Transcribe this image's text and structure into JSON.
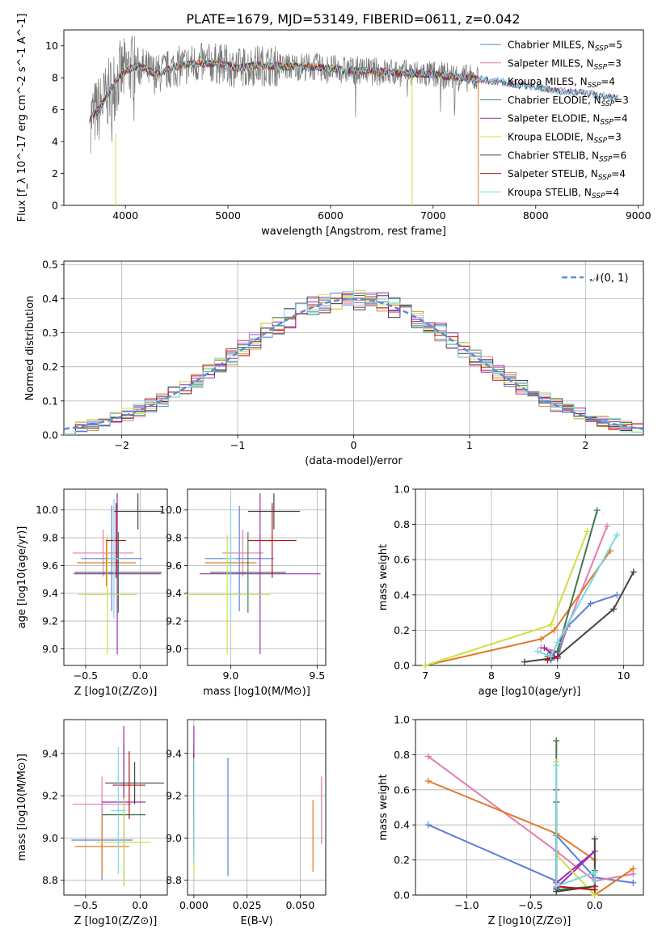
{
  "title": "PLATE=1679, MJD=53149, FIBERID=0611, z=0.042",
  "colors": {
    "chabrier_miles": "#5b7fd6",
    "salpeter_miles": "#e47cb1",
    "kroupa_miles": "#8a8a8a",
    "chabrier_elodie": "#3f7a4f",
    "salpeter_elodie": "#9b2db5",
    "kroupa_elodie": "#cde045",
    "chabrier_stelib": "#444444",
    "salpeter_stelib": "#b01818",
    "kroupa_stelib": "#7ad8e4",
    "orange": "#e07a2a",
    "normal": "#5b8bd6",
    "data": "#777777"
  },
  "chart_data": [
    {
      "id": "spectrum",
      "type": "line",
      "xlabel": "wavelength [Angstrom, rest frame]",
      "ylabel": "Flux [f_λ 10^-17 erg cm^-2 s^-1 A^-1]",
      "xlim": [
        3400,
        9050
      ],
      "ylim": [
        0,
        11
      ],
      "xticks": [
        4000,
        5000,
        6000,
        7000,
        8000,
        9000
      ],
      "yticks": [
        0,
        2,
        4,
        6,
        8,
        10
      ],
      "grid": false,
      "legend_position": "top-right",
      "legend": [
        {
          "label": "Chabrier MILES, N_SSP=5",
          "color": "#5b7fd6"
        },
        {
          "label": "Salpeter MILES, N_SSP=3",
          "color": "#e47cb1"
        },
        {
          "label": "Kroupa MILES, N_SSP=4",
          "color": "#8a8a8a"
        },
        {
          "label": "Chabrier ELODIE, N_SSP=3",
          "color": "#3f7a4f"
        },
        {
          "label": "Salpeter ELODIE, N_SSP=4",
          "color": "#9b2db5"
        },
        {
          "label": "Kroupa ELODIE, N_SSP=3",
          "color": "#cde045"
        },
        {
          "label": "Chabrier STELIB, N_SSP=6",
          "color": "#444444"
        },
        {
          "label": "Salpeter STELIB, N_SSP=4",
          "color": "#b01818"
        },
        {
          "label": "Kroupa STELIB, N_SSP=4",
          "color": "#7ad8e4"
        }
      ],
      "model_curve": {
        "x": [
          3650,
          3750,
          3850,
          3950,
          4050,
          4150,
          4300,
          4500,
          4700,
          4900,
          5100,
          5300,
          5500,
          5800,
          6100,
          6400,
          6700,
          7000,
          7300,
          7600,
          7900,
          8200,
          8500,
          8800
        ],
        "y": [
          5.4,
          6.1,
          7.2,
          8.2,
          8.6,
          8.7,
          8.2,
          8.7,
          8.9,
          8.9,
          8.6,
          8.8,
          8.7,
          8.7,
          8.5,
          8.4,
          8.3,
          8.2,
          8.0,
          7.8,
          7.5,
          7.2,
          7.0,
          6.7
        ]
      }
    },
    {
      "id": "residuals",
      "type": "histogram",
      "xlabel": "(data-model)/error",
      "ylabel": "Normed distribution",
      "xlim": [
        -2.5,
        2.5
      ],
      "ylim": [
        0,
        0.51
      ],
      "xticks": [
        -2,
        -1,
        0,
        1,
        2
      ],
      "yticks": [
        0.0,
        0.1,
        0.2,
        0.3,
        0.4,
        0.5
      ],
      "grid": true,
      "legend_position": "top-right",
      "legend": [
        {
          "label": "𝒩(0, 1)",
          "style": "dashed",
          "color": "#5b8bd6"
        }
      ]
    },
    {
      "id": "age_vs_Z",
      "type": "errorbar",
      "xlabel": "Z [log10(Z/Z⊙)]",
      "ylabel": "age [log10(age/yr)]",
      "xlim": [
        -0.7,
        0.25
      ],
      "ylim": [
        8.88,
        10.15
      ],
      "xticks": [
        -0.5,
        0.0
      ],
      "yticks": [
        9.0,
        9.2,
        9.4,
        9.6,
        9.8,
        10.0
      ],
      "grid": true,
      "points": [
        {
          "x": -0.26,
          "y": 9.65,
          "xerr": 0.28,
          "yerr": 0.38,
          "color": "#5b7fd6"
        },
        {
          "x": -0.34,
          "y": 9.69,
          "xerr": 0.28,
          "yerr": 0.17,
          "color": "#e47cb1"
        },
        {
          "x": -0.31,
          "y": 9.62,
          "xerr": 0.27,
          "yerr": 0.17,
          "color": "#e07a2a"
        },
        {
          "x": -0.2,
          "y": 9.55,
          "xerr": 0.4,
          "yerr": 0.29,
          "color": "#3f7a4f"
        },
        {
          "x": -0.21,
          "y": 9.54,
          "xerr": 0.4,
          "yerr": 0.58,
          "color": "#9b2db5"
        },
        {
          "x": -0.3,
          "y": 9.39,
          "xerr": 0.27,
          "yerr": 0.43,
          "color": "#cde045"
        },
        {
          "x": -0.02,
          "y": 9.99,
          "xerr": 0.22,
          "yerr": 0.13,
          "color": "#444444"
        },
        {
          "x": -0.22,
          "y": 9.78,
          "xerr": 0.09,
          "yerr": 0.27,
          "color": "#b01818"
        },
        {
          "x": -0.24,
          "y": 9.65,
          "xerr": 0.05,
          "yerr": 0.43,
          "color": "#7ad8e4"
        }
      ]
    },
    {
      "id": "age_vs_mass",
      "type": "errorbar",
      "xlabel": "mass [log10(M/M⊙)]",
      "ylabel": "",
      "xlim": [
        8.75,
        9.55
      ],
      "ylim": [
        8.88,
        10.15
      ],
      "xticks": [
        9.0,
        9.5
      ],
      "yticks": [
        9.0,
        9.2,
        9.4,
        9.6,
        9.8,
        10.0
      ],
      "grid": true,
      "points": [
        {
          "x": 9.05,
          "y": 9.65,
          "xerr": 0.2,
          "yerr": 0.38,
          "color": "#5b7fd6"
        },
        {
          "x": 9.07,
          "y": 9.69,
          "xerr": 0.12,
          "yerr": 0.17,
          "color": "#e47cb1"
        },
        {
          "x": 9.0,
          "y": 9.62,
          "xerr": 0.15,
          "yerr": 0.17,
          "color": "#e07a2a"
        },
        {
          "x": 9.1,
          "y": 9.55,
          "xerr": 0.22,
          "yerr": 0.29,
          "color": "#3f7a4f"
        },
        {
          "x": 9.17,
          "y": 9.54,
          "xerr": 0.35,
          "yerr": 0.58,
          "color": "#9b2db5"
        },
        {
          "x": 8.98,
          "y": 9.39,
          "xerr": 0.25,
          "yerr": 0.43,
          "color": "#cde045"
        },
        {
          "x": 9.25,
          "y": 9.99,
          "xerr": 0.15,
          "yerr": 0.13,
          "color": "#444444"
        },
        {
          "x": 9.24,
          "y": 9.78,
          "xerr": 0.14,
          "yerr": 0.27,
          "color": "#b01818"
        },
        {
          "x": 9.0,
          "y": 9.65,
          "xerr": 0.03,
          "yerr": 0.43,
          "color": "#7ad8e4"
        }
      ]
    },
    {
      "id": "mass_weight_vs_age",
      "type": "line",
      "xlabel": "age [log10(age/yr)]",
      "ylabel": "mass weight",
      "xlim": [
        6.85,
        10.3
      ],
      "ylim": [
        0,
        1.0
      ],
      "xticks": [
        7,
        8,
        9,
        10
      ],
      "yticks": [
        0.0,
        0.2,
        0.4,
        0.6,
        0.8,
        1.0
      ],
      "grid": true,
      "series": [
        {
          "color": "#5b7fd6",
          "x": [
            8.9,
            9.0,
            9.15,
            9.5,
            9.9
          ],
          "y": [
            0.03,
            0.05,
            0.22,
            0.35,
            0.4
          ]
        },
        {
          "color": "#e47cb1",
          "x": [
            8.75,
            9.0,
            9.75
          ],
          "y": [
            0.1,
            0.08,
            0.79
          ]
        },
        {
          "color": "#e07a2a",
          "x": [
            7.0,
            8.75,
            8.95,
            9.8
          ],
          "y": [
            0.0,
            0.15,
            0.2,
            0.65
          ]
        },
        {
          "color": "#3f7a4f",
          "x": [
            8.85,
            9.0,
            9.6
          ],
          "y": [
            0.05,
            0.08,
            0.88
          ]
        },
        {
          "color": "#9b2db5",
          "x": [
            8.8,
            8.9,
            9.0,
            8.95
          ],
          "y": [
            0.1,
            0.07,
            0.04,
            0.05
          ]
        },
        {
          "color": "#cde045",
          "x": [
            7.0,
            8.9,
            9.45
          ],
          "y": [
            0.0,
            0.23,
            0.76
          ]
        },
        {
          "color": "#444444",
          "x": [
            8.5,
            8.9,
            9.0,
            9.85,
            10.15
          ],
          "y": [
            0.02,
            0.04,
            0.05,
            0.32,
            0.53
          ]
        },
        {
          "color": "#b01818",
          "x": [
            8.85,
            8.9,
            9.0
          ],
          "y": [
            0.03,
            0.05,
            0.05
          ]
        },
        {
          "color": "#7ad8e4",
          "x": [
            8.7,
            8.9,
            9.0,
            9.9
          ],
          "y": [
            0.08,
            0.05,
            0.13,
            0.74
          ]
        }
      ]
    },
    {
      "id": "mass_vs_Z",
      "type": "errorbar",
      "xlabel": "Z [log10(Z/Z⊙)]",
      "ylabel": "mass [log10(M/M⊙)]",
      "xlim": [
        -0.7,
        0.25
      ],
      "ylim": [
        8.73,
        9.56
      ],
      "xticks": [
        -0.5,
        0.0
      ],
      "yticks": [
        8.8,
        9.0,
        9.2,
        9.4
      ],
      "grid": true,
      "points": [
        {
          "x": -0.35,
          "y": 8.99,
          "xerr": 0.28,
          "yerr": 0.19,
          "color": "#5b7fd6"
        },
        {
          "x": -0.35,
          "y": 9.16,
          "xerr": 0.27,
          "yerr": 0.13,
          "color": "#e47cb1"
        },
        {
          "x": -0.35,
          "y": 8.96,
          "xerr": 0.25,
          "yerr": 0.14,
          "color": "#e07a2a"
        },
        {
          "x": -0.15,
          "y": 9.11,
          "xerr": 0.2,
          "yerr": 0.34,
          "color": "#3f7a4f"
        },
        {
          "x": -0.15,
          "y": 9.17,
          "xerr": 0.2,
          "yerr": 0.36,
          "color": "#9b2db5"
        },
        {
          "x": -0.15,
          "y": 8.98,
          "xerr": 0.25,
          "yerr": 0.21,
          "color": "#cde045"
        },
        {
          "x": -0.05,
          "y": 9.26,
          "xerr": 0.27,
          "yerr": 0.1,
          "color": "#444444"
        },
        {
          "x": -0.1,
          "y": 9.25,
          "xerr": 0.15,
          "yerr": 0.16,
          "color": "#b01818"
        },
        {
          "x": -0.2,
          "y": 9.13,
          "xerr": 0.07,
          "yerr": 0.3,
          "color": "#7ad8e4"
        }
      ]
    },
    {
      "id": "mass_vs_EBV",
      "type": "errorbar",
      "xlabel": "E(B-V)",
      "ylabel": "",
      "xlim": [
        -0.003,
        0.062
      ],
      "ylim": [
        8.73,
        9.56
      ],
      "xticks": [
        0.0,
        0.025,
        0.05
      ],
      "yticks": [
        8.8,
        9.0,
        9.2,
        9.4
      ],
      "grid": true,
      "points": [
        {
          "x": 0.016,
          "y": 9.1,
          "xerr": 0,
          "yerr": 0.28,
          "color": "#5b7fd6"
        },
        {
          "x": 0.06,
          "y": 9.13,
          "xerr": 0,
          "yerr": 0.16,
          "color": "#e47cb1"
        },
        {
          "x": 0.056,
          "y": 9.01,
          "xerr": 0,
          "yerr": 0.17,
          "color": "#e07a2a"
        },
        {
          "x": 0.0,
          "y": 9.2,
          "xerr": 0,
          "yerr": 0.25,
          "color": "#3f7a4f"
        },
        {
          "x": 0.0,
          "y": 9.33,
          "xerr": 0,
          "yerr": 0.2,
          "color": "#9b2db5"
        },
        {
          "x": 0.0,
          "y": 9.02,
          "xerr": 0,
          "yerr": 0.2,
          "color": "#cde045"
        },
        {
          "x": 0.0,
          "y": 9.25,
          "xerr": 0,
          "yerr": 0.15,
          "color": "#444444"
        },
        {
          "x": 0.0,
          "y": 9.16,
          "xerr": 0,
          "yerr": 0.24,
          "color": "#b01818"
        },
        {
          "x": 0.0,
          "y": 9.13,
          "xerr": 0,
          "yerr": 0.25,
          "color": "#7ad8e4"
        }
      ]
    },
    {
      "id": "mass_weight_vs_Z",
      "type": "line",
      "xlabel": "Z [log10(Z/Z⊙)]",
      "ylabel": "mass weight",
      "xlim": [
        -1.4,
        0.38
      ],
      "ylim": [
        0,
        1.0
      ],
      "xticks": [
        -1.0,
        -0.5,
        0.0
      ],
      "yticks": [
        0.0,
        0.2,
        0.4,
        0.6,
        0.8,
        1.0
      ],
      "grid": true,
      "series": [
        {
          "color": "#5b7fd6",
          "x": [
            -1.3,
            -0.3,
            -0.3,
            0.0,
            0.3
          ],
          "y": [
            0.4,
            0.08,
            0.34,
            0.1,
            0.07
          ]
        },
        {
          "color": "#e47cb1",
          "x": [
            -1.3,
            -0.3,
            0.0,
            0.3
          ],
          "y": [
            0.79,
            0.25,
            0.08,
            0.12
          ]
        },
        {
          "color": "#e07a2a",
          "x": [
            -1.3,
            -0.3,
            0.0,
            0.0,
            0.3
          ],
          "y": [
            0.65,
            0.35,
            0.2,
            0.0,
            0.15
          ]
        },
        {
          "color": "#3f7a4f",
          "x": [
            -0.3,
            -0.3,
            0.0,
            0.0
          ],
          "y": [
            0.88,
            0.03,
            0.05,
            0.14
          ]
        },
        {
          "color": "#9b2db5",
          "x": [
            -0.3,
            -0.3,
            0.0,
            -0.3
          ],
          "y": [
            0.6,
            0.04,
            0.25,
            0.07
          ]
        },
        {
          "color": "#cde045",
          "x": [
            -0.3,
            -0.3,
            0.0
          ],
          "y": [
            0.76,
            0.23,
            0.0
          ]
        },
        {
          "color": "#444444",
          "x": [
            -0.3,
            -0.3,
            0.0,
            0.0
          ],
          "y": [
            0.53,
            0.02,
            0.05,
            0.32
          ]
        },
        {
          "color": "#b01818",
          "x": [
            -0.3,
            0.0,
            0.0
          ],
          "y": [
            0.05,
            0.03,
            0.05
          ]
        },
        {
          "color": "#7ad8e4",
          "x": [
            -0.3,
            -0.3,
            0.0,
            0.0
          ],
          "y": [
            0.74,
            0.05,
            0.13,
            0.08
          ]
        }
      ]
    }
  ]
}
